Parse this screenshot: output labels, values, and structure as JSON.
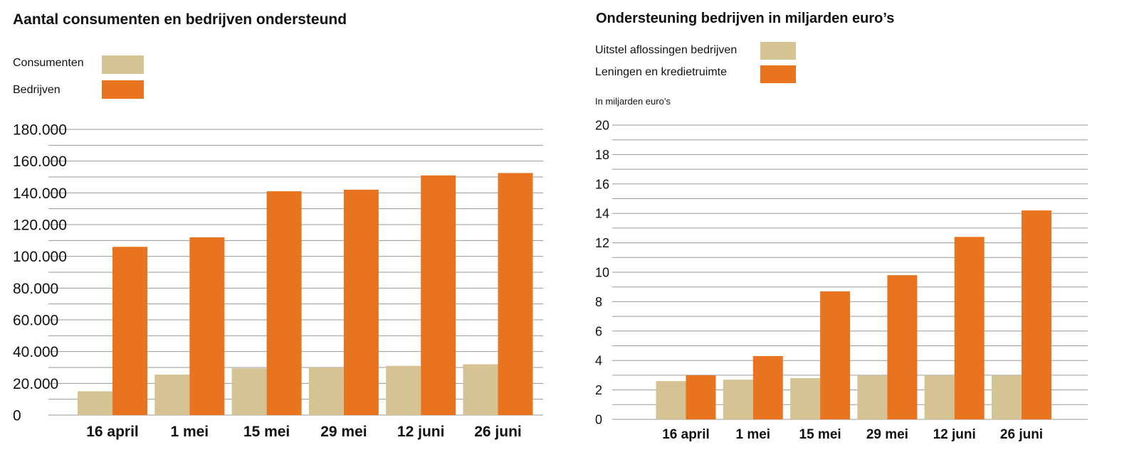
{
  "colors": {
    "consumer_tan": "#d6c394",
    "business_orange": "#e9741f",
    "grid": "#9a9a9a"
  },
  "chart_data": [
    {
      "type": "bar",
      "title": "Aantal consumenten en bedrijven ondersteund",
      "categories": [
        "16 april",
        "1 mei",
        "15 mei",
        "29 mei",
        "12 juni",
        "26 juni"
      ],
      "series": [
        {
          "name": "Consumenten",
          "color": "#d6c394",
          "values": [
            15000,
            25500,
            29500,
            30000,
            31000,
            32000
          ]
        },
        {
          "name": "Bedrijven",
          "color": "#e9741f",
          "values": [
            106000,
            112000,
            141000,
            142000,
            151000,
            152500
          ]
        }
      ],
      "ylim": [
        0,
        180000
      ],
      "yticks": [
        0,
        20000,
        40000,
        60000,
        80000,
        100000,
        120000,
        140000,
        160000,
        180000
      ],
      "ytick_labels": [
        "0",
        "20.000",
        "40.000",
        "60.000",
        "80.000",
        "100.000",
        "120.000",
        "140.000",
        "160.000",
        "180.000"
      ],
      "minor_gridlines": true,
      "legend_position": "top-left"
    },
    {
      "type": "bar",
      "title": "Ondersteuning bedrijven in miljarden euro’s",
      "unit_label": "In miljarden euro’s",
      "categories": [
        "16 april",
        "1 mei",
        "15 mei",
        "29 mei",
        "12 juni",
        "26 juni"
      ],
      "series": [
        {
          "name": "Uitstel aflossingen bedrijven",
          "color": "#d6c394",
          "values": [
            2.6,
            2.7,
            2.8,
            3.0,
            3.0,
            3.0
          ]
        },
        {
          "name": "Leningen en kredietruimte",
          "color": "#e9741f",
          "values": [
            3.0,
            4.3,
            8.7,
            9.8,
            12.4,
            14.2
          ]
        }
      ],
      "ylim": [
        0,
        20
      ],
      "yticks": [
        0,
        2,
        4,
        6,
        8,
        10,
        12,
        14,
        16,
        18,
        20
      ],
      "ytick_labels": [
        "0",
        "2",
        "4",
        "6",
        "8",
        "10",
        "12",
        "14",
        "16",
        "18",
        "20"
      ],
      "minor_gridlines": true,
      "legend_position": "top-left"
    }
  ]
}
